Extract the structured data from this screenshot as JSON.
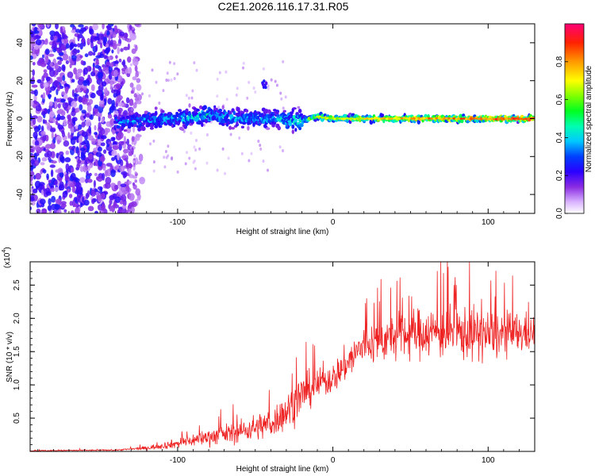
{
  "figure_title": "C2E1.2026.116.17.31.R05",
  "chart_data": [
    {
      "type": "heatmap",
      "title": "C2E1.2026.116.17.31.R05",
      "xlabel": "Height of straight line (km)",
      "ylabel": "Frequency (Hz)",
      "xlim": [
        -195,
        130
      ],
      "ylim": [
        -50,
        50
      ],
      "xticks": [
        -100,
        0,
        100
      ],
      "xtick_labels": [
        "-100",
        "0",
        "100"
      ],
      "yticks": [
        -40,
        -20,
        0,
        20,
        40
      ],
      "ytick_labels": [
        "-40",
        "-20",
        "0",
        "20",
        "40"
      ],
      "colorbar": {
        "label": "Normalized spectral amplitude",
        "range": [
          0,
          1
        ],
        "ticks": [
          0,
          0.2,
          0.4,
          0.6,
          0.8
        ],
        "tick_labels": [
          "0.0",
          "0.2",
          "0.4",
          "0.6",
          "0.8"
        ],
        "colormap": [
          "#ffffff",
          "#6a00ff",
          "#0000ff",
          "#00ffff",
          "#00ff00",
          "#ffff00",
          "#ff0000",
          "#ff0066"
        ]
      },
      "ridge": [
        {
          "x": -140,
          "freq": -2,
          "amp": 0.35
        },
        {
          "x": -120,
          "freq": -1,
          "amp": 0.4
        },
        {
          "x": -100,
          "freq": 0,
          "amp": 0.42
        },
        {
          "x": -80,
          "freq": 2,
          "amp": 0.45
        },
        {
          "x": -60,
          "freq": 0,
          "amp": 0.4
        },
        {
          "x": -40,
          "freq": 0,
          "amp": 0.4
        },
        {
          "x": -20,
          "freq": -1,
          "amp": 0.55
        },
        {
          "x": -10,
          "freq": 1,
          "amp": 0.65
        },
        {
          "x": 0,
          "freq": 0,
          "amp": 0.7
        },
        {
          "x": 20,
          "freq": 0,
          "amp": 0.75
        },
        {
          "x": 40,
          "freq": 0,
          "amp": 0.78
        },
        {
          "x": 60,
          "freq": 0,
          "amp": 0.82
        },
        {
          "x": 80,
          "freq": 0,
          "amp": 0.85
        },
        {
          "x": 100,
          "freq": 0,
          "amp": 0.88
        },
        {
          "x": 130,
          "freq": 0,
          "amp": 0.9
        }
      ],
      "feature_spot": {
        "x": -44,
        "freq": 18,
        "amp": 0.25
      }
    },
    {
      "type": "line",
      "xlabel": "Height of straight line (km)",
      "ylabel": "SNR (10 * v/v)",
      "scale_label": "(x10",
      "scale_exponent": "4",
      "scale_close": ")",
      "xlim": [
        -195,
        130
      ],
      "ylim": [
        0,
        2.85
      ],
      "xticks": [
        -100,
        0,
        100
      ],
      "xtick_labels": [
        "-100",
        "0",
        "100"
      ],
      "yticks": [
        0.5,
        1.0,
        1.5,
        2.0,
        2.5
      ],
      "ytick_labels": [
        "0.5",
        "1.0",
        "1.5",
        "2.0",
        "2.5"
      ],
      "color": "#ee2222",
      "envelope": [
        {
          "x": -195,
          "mean": 0.01,
          "spread": 0.01
        },
        {
          "x": -140,
          "mean": 0.02,
          "spread": 0.01
        },
        {
          "x": -120,
          "mean": 0.05,
          "spread": 0.03
        },
        {
          "x": -100,
          "mean": 0.12,
          "spread": 0.08
        },
        {
          "x": -80,
          "mean": 0.22,
          "spread": 0.14
        },
        {
          "x": -60,
          "mean": 0.3,
          "spread": 0.18
        },
        {
          "x": -40,
          "mean": 0.42,
          "spread": 0.25
        },
        {
          "x": -30,
          "mean": 0.6,
          "spread": 0.3
        },
        {
          "x": -20,
          "mean": 0.85,
          "spread": 0.35
        },
        {
          "x": -10,
          "mean": 1.0,
          "spread": 0.25
        },
        {
          "x": 0,
          "mean": 1.1,
          "spread": 0.25
        },
        {
          "x": 10,
          "mean": 1.35,
          "spread": 0.3
        },
        {
          "x": 20,
          "mean": 1.6,
          "spread": 0.35
        },
        {
          "x": 40,
          "mean": 1.72,
          "spread": 0.38
        },
        {
          "x": 60,
          "mean": 1.8,
          "spread": 0.42
        },
        {
          "x": 80,
          "mean": 1.78,
          "spread": 0.45
        },
        {
          "x": 100,
          "mean": 1.75,
          "spread": 0.42
        },
        {
          "x": 130,
          "mean": 1.78,
          "spread": 0.3
        }
      ],
      "peak": {
        "x": 88,
        "y": 2.85
      }
    }
  ]
}
